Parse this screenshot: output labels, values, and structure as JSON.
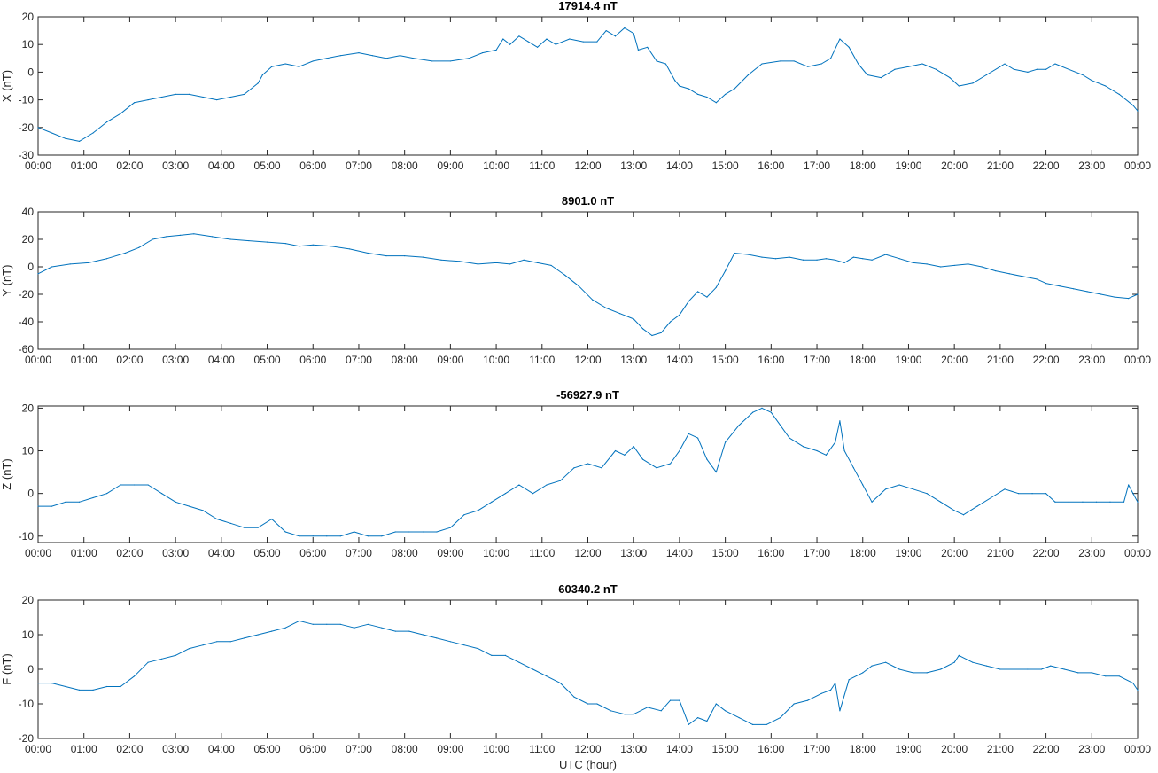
{
  "chart_data": [
    {
      "type": "line",
      "title": "17914.4 nT",
      "ylabel": "X (nT)",
      "xlabel": "",
      "xlim": [
        0,
        24
      ],
      "ylim": [
        -30,
        20
      ],
      "yticks": [
        -30,
        -20,
        -10,
        0,
        10,
        20
      ],
      "xtick_labels": [
        "00:00",
        "01:00",
        "02:00",
        "03:00",
        "04:00",
        "05:00",
        "06:00",
        "07:00",
        "08:00",
        "09:00",
        "10:00",
        "11:00",
        "12:00",
        "13:00",
        "14:00",
        "15:00",
        "16:00",
        "17:00",
        "18:00",
        "19:00",
        "20:00",
        "21:00",
        "22:00",
        "23:00",
        "00:00"
      ],
      "series": [
        {
          "color": "#0072bd",
          "x": [
            0,
            0.3,
            0.6,
            0.9,
            1.2,
            1.5,
            1.8,
            2.1,
            2.4,
            2.7,
            3,
            3.3,
            3.6,
            3.9,
            4.2,
            4.5,
            4.8,
            4.9,
            5.1,
            5.4,
            5.7,
            6,
            6.3,
            6.6,
            7,
            7.3,
            7.6,
            7.9,
            8.2,
            8.6,
            9,
            9.4,
            9.7,
            10,
            10.15,
            10.3,
            10.5,
            10.7,
            10.9,
            11.1,
            11.3,
            11.6,
            11.9,
            12.2,
            12.4,
            12.6,
            12.8,
            13,
            13.1,
            13.3,
            13.5,
            13.7,
            13.9,
            14,
            14.2,
            14.4,
            14.6,
            14.8,
            15,
            15.2,
            15.5,
            15.8,
            16.2,
            16.5,
            16.8,
            17.1,
            17.3,
            17.5,
            17.7,
            17.9,
            18.1,
            18.4,
            18.7,
            19,
            19.3,
            19.6,
            19.9,
            20.1,
            20.4,
            20.7,
            21,
            21.1,
            21.3,
            21.6,
            21.8,
            22,
            22.2,
            22.5,
            22.8,
            23,
            23.3,
            23.6,
            23.9,
            24
          ],
          "y": [
            -20,
            -22,
            -24,
            -25,
            -22,
            -18,
            -15,
            -11,
            -10,
            -9,
            -8,
            -8,
            -9,
            -10,
            -9,
            -8,
            -4,
            -1,
            2,
            3,
            2,
            4,
            5,
            6,
            7,
            6,
            5,
            6,
            5,
            4,
            4,
            5,
            7,
            8,
            12,
            10,
            13,
            11,
            9,
            12,
            10,
            12,
            11,
            11,
            15,
            13,
            16,
            14,
            8,
            9,
            4,
            3,
            -3,
            -5,
            -6,
            -8,
            -9,
            -11,
            -8,
            -6,
            -1,
            3,
            4,
            4,
            2,
            3,
            5,
            12,
            9,
            3,
            -1,
            -2,
            1,
            2,
            3,
            1,
            -2,
            -5,
            -4,
            -1,
            2,
            3,
            1,
            0,
            1,
            1,
            3,
            1,
            -1,
            -3,
            -5,
            -8,
            -12,
            -14
          ]
        }
      ]
    },
    {
      "type": "line",
      "title": "8901.0 nT",
      "ylabel": "Y (nT)",
      "xlabel": "",
      "xlim": [
        0,
        24
      ],
      "ylim": [
        -60,
        40
      ],
      "yticks": [
        -60,
        -40,
        -20,
        0,
        20,
        40
      ],
      "xtick_labels": [
        "00:00",
        "01:00",
        "02:00",
        "03:00",
        "04:00",
        "05:00",
        "06:00",
        "07:00",
        "08:00",
        "09:00",
        "10:00",
        "11:00",
        "12:00",
        "13:00",
        "14:00",
        "15:00",
        "16:00",
        "17:00",
        "18:00",
        "19:00",
        "20:00",
        "21:00",
        "22:00",
        "23:00",
        "00:00"
      ],
      "series": [
        {
          "color": "#0072bd",
          "x": [
            0,
            0.3,
            0.7,
            1.1,
            1.5,
            1.9,
            2.2,
            2.5,
            2.8,
            3.1,
            3.4,
            3.8,
            4.2,
            4.6,
            5,
            5.4,
            5.7,
            6,
            6.4,
            6.8,
            7.2,
            7.6,
            8,
            8.4,
            8.8,
            9.2,
            9.6,
            10,
            10.3,
            10.6,
            10.9,
            11.2,
            11.5,
            11.8,
            12.1,
            12.4,
            12.7,
            13,
            13.2,
            13.4,
            13.6,
            13.8,
            14,
            14.2,
            14.4,
            14.6,
            14.8,
            15,
            15.2,
            15.5,
            15.8,
            16.1,
            16.4,
            16.7,
            17,
            17.2,
            17.4,
            17.6,
            17.8,
            18,
            18.2,
            18.5,
            18.8,
            19.1,
            19.4,
            19.7,
            20,
            20.3,
            20.6,
            20.9,
            21.2,
            21.5,
            21.8,
            22,
            22.3,
            22.6,
            22.9,
            23.2,
            23.5,
            23.8,
            24
          ],
          "y": [
            -5,
            0,
            2,
            3,
            6,
            10,
            14,
            20,
            22,
            23,
            24,
            22,
            20,
            19,
            18,
            17,
            15,
            16,
            15,
            13,
            10,
            8,
            8,
            7,
            5,
            4,
            2,
            3,
            2,
            5,
            3,
            1,
            -6,
            -14,
            -24,
            -30,
            -34,
            -38,
            -45,
            -50,
            -48,
            -40,
            -35,
            -25,
            -18,
            -22,
            -15,
            -3,
            10,
            9,
            7,
            6,
            7,
            5,
            5,
            6,
            5,
            3,
            7,
            6,
            5,
            9,
            6,
            3,
            2,
            0,
            1,
            2,
            0,
            -3,
            -5,
            -7,
            -9,
            -12,
            -14,
            -16,
            -18,
            -20,
            -22,
            -23,
            -20
          ]
        }
      ]
    },
    {
      "type": "line",
      "title": "-56927.9 nT",
      "ylabel": "Z (nT)",
      "xlabel": "",
      "xlim": [
        0,
        24
      ],
      "ylim": [
        -11.5,
        20.5
      ],
      "yticks": [
        -10,
        0,
        10,
        20
      ],
      "xtick_labels": [
        "00:00",
        "01:00",
        "02:00",
        "03:00",
        "04:00",
        "05:00",
        "06:00",
        "07:00",
        "08:00",
        "09:00",
        "10:00",
        "11:00",
        "12:00",
        "13:00",
        "14:00",
        "15:00",
        "16:00",
        "17:00",
        "18:00",
        "19:00",
        "20:00",
        "21:00",
        "22:00",
        "23:00",
        "00:00"
      ],
      "series": [
        {
          "color": "#0072bd",
          "x": [
            0,
            0.3,
            0.6,
            0.9,
            1.2,
            1.5,
            1.8,
            2.1,
            2.4,
            2.7,
            3,
            3.3,
            3.6,
            3.9,
            4.2,
            4.5,
            4.8,
            5.1,
            5.4,
            5.7,
            6,
            6.3,
            6.6,
            6.9,
            7.2,
            7.5,
            7.8,
            8.1,
            8.4,
            8.7,
            9,
            9.3,
            9.6,
            9.9,
            10.2,
            10.5,
            10.8,
            11.1,
            11.4,
            11.7,
            12,
            12.3,
            12.6,
            12.8,
            13,
            13.2,
            13.5,
            13.8,
            14,
            14.2,
            14.4,
            14.6,
            14.8,
            15,
            15.3,
            15.6,
            15.8,
            16,
            16.2,
            16.4,
            16.7,
            17,
            17.2,
            17.4,
            17.5,
            17.6,
            17.8,
            18,
            18.2,
            18.5,
            18.8,
            19.1,
            19.4,
            19.7,
            20,
            20.2,
            20.5,
            20.8,
            21.1,
            21.4,
            21.7,
            22,
            22.2,
            22.5,
            22.8,
            23.1,
            23.4,
            23.7,
            23.8,
            24
          ],
          "y": [
            -3,
            -3,
            -2,
            -2,
            -1,
            0,
            2,
            2,
            2,
            0,
            -2,
            -3,
            -4,
            -6,
            -7,
            -8,
            -8,
            -6,
            -9,
            -10,
            -10,
            -10,
            -10,
            -9,
            -10,
            -10,
            -9,
            -9,
            -9,
            -9,
            -8,
            -5,
            -4,
            -2,
            0,
            2,
            0,
            2,
            3,
            6,
            7,
            6,
            10,
            9,
            11,
            8,
            6,
            7,
            10,
            14,
            13,
            8,
            5,
            12,
            16,
            19,
            20,
            19,
            16,
            13,
            11,
            10,
            9,
            12,
            17,
            10,
            6,
            2,
            -2,
            1,
            2,
            1,
            0,
            -2,
            -4,
            -5,
            -3,
            -1,
            1,
            0,
            0,
            0,
            -2,
            -2,
            -2,
            -2,
            -2,
            -2,
            2,
            -2
          ]
        }
      ]
    },
    {
      "type": "line",
      "title": "60340.2 nT",
      "ylabel": "F (nT)",
      "xlabel": "UTC (hour)",
      "xlim": [
        0,
        24
      ],
      "ylim": [
        -20,
        20
      ],
      "yticks": [
        -20,
        -10,
        0,
        10,
        20
      ],
      "xtick_labels": [
        "00:00",
        "01:00",
        "02:00",
        "03:00",
        "04:00",
        "05:00",
        "06:00",
        "07:00",
        "08:00",
        "09:00",
        "10:00",
        "11:00",
        "12:00",
        "13:00",
        "14:00",
        "15:00",
        "16:00",
        "17:00",
        "18:00",
        "19:00",
        "20:00",
        "21:00",
        "22:00",
        "23:00",
        "00:00"
      ],
      "series": [
        {
          "color": "#0072bd",
          "x": [
            0,
            0.3,
            0.6,
            0.9,
            1.2,
            1.5,
            1.8,
            2.1,
            2.4,
            2.7,
            3,
            3.3,
            3.6,
            3.9,
            4.2,
            4.5,
            4.8,
            5.1,
            5.4,
            5.7,
            6,
            6.3,
            6.6,
            6.9,
            7.2,
            7.5,
            7.8,
            8.1,
            8.4,
            8.7,
            9,
            9.3,
            9.6,
            9.9,
            10.2,
            10.5,
            10.8,
            11.1,
            11.4,
            11.7,
            12,
            12.2,
            12.5,
            12.8,
            13,
            13.3,
            13.6,
            13.8,
            14,
            14.2,
            14.4,
            14.6,
            14.8,
            15,
            15.3,
            15.6,
            15.9,
            16.2,
            16.5,
            16.8,
            17.1,
            17.3,
            17.4,
            17.5,
            17.7,
            18,
            18.2,
            18.5,
            18.8,
            19.1,
            19.4,
            19.7,
            20,
            20.1,
            20.4,
            20.7,
            21,
            21.3,
            21.6,
            21.9,
            22.1,
            22.4,
            22.7,
            23,
            23.3,
            23.6,
            23.9,
            24
          ],
          "y": [
            -4,
            -4,
            -5,
            -6,
            -6,
            -5,
            -5,
            -2,
            2,
            3,
            4,
            6,
            7,
            8,
            8,
            9,
            10,
            11,
            12,
            14,
            13,
            13,
            13,
            12,
            13,
            12,
            11,
            11,
            10,
            9,
            8,
            7,
            6,
            4,
            4,
            2,
            0,
            -2,
            -4,
            -8,
            -10,
            -10,
            -12,
            -13,
            -13,
            -11,
            -12,
            -9,
            -9,
            -16,
            -14,
            -15,
            -10,
            -12,
            -14,
            -16,
            -16,
            -14,
            -10,
            -9,
            -7,
            -6,
            -4,
            -12,
            -3,
            -1,
            1,
            2,
            0,
            -1,
            -1,
            0,
            2,
            4,
            2,
            1,
            0,
            0,
            0,
            0,
            1,
            0,
            -1,
            -1,
            -2,
            -2,
            -4,
            -6
          ]
        }
      ]
    }
  ]
}
